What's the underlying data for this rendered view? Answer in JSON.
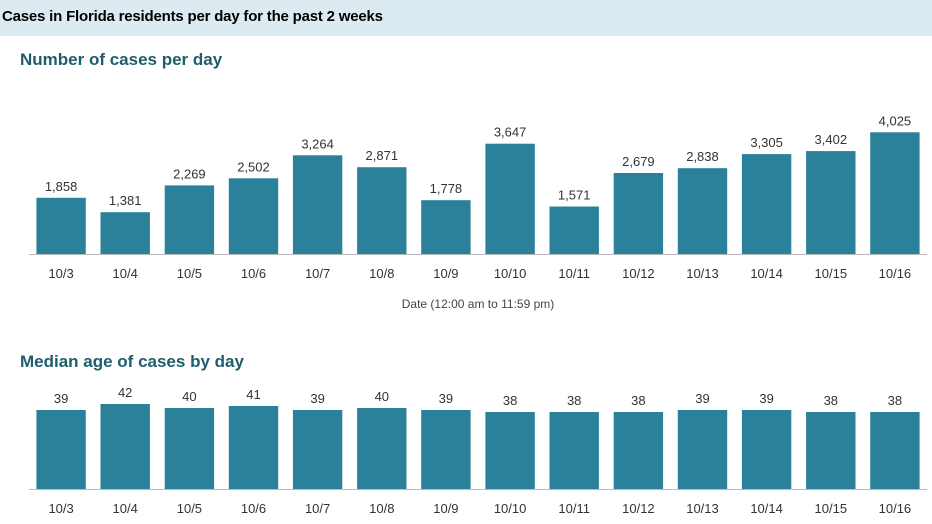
{
  "header": {
    "title": "Cases in Florida residents per day for the past 2 weeks"
  },
  "colors": {
    "bar": "#2b8199",
    "header_band": "#dcebf2",
    "section_title": "#1f5d6c",
    "axis": "#bbbbbb"
  },
  "chart_data": [
    {
      "type": "bar",
      "title": "Number of cases per day",
      "xlabel": "Date (12:00 am to 11:59 pm)",
      "ylabel": "",
      "categories": [
        "10/3",
        "10/4",
        "10/5",
        "10/6",
        "10/7",
        "10/8",
        "10/9",
        "10/10",
        "10/11",
        "10/12",
        "10/13",
        "10/14",
        "10/15",
        "10/16"
      ],
      "values": [
        1858,
        1381,
        2269,
        2502,
        3264,
        2871,
        1778,
        3647,
        1571,
        2679,
        2838,
        3305,
        3402,
        4025
      ],
      "value_labels": [
        "1,858",
        "1,381",
        "2,269",
        "2,502",
        "3,264",
        "2,871",
        "1,778",
        "3,647",
        "1,571",
        "2,679",
        "2,838",
        "3,305",
        "3,402",
        "4,025"
      ],
      "ylim": [
        0,
        4200
      ],
      "grid": false
    },
    {
      "type": "bar",
      "title": "Median age of cases by day",
      "xlabel": "",
      "ylabel": "",
      "categories": [
        "10/3",
        "10/4",
        "10/5",
        "10/6",
        "10/7",
        "10/8",
        "10/9",
        "10/10",
        "10/11",
        "10/12",
        "10/13",
        "10/14",
        "10/15",
        "10/16"
      ],
      "values": [
        39,
        42,
        40,
        41,
        39,
        40,
        39,
        38,
        38,
        38,
        39,
        39,
        38,
        38
      ],
      "value_labels": [
        "39",
        "42",
        "40",
        "41",
        "39",
        "40",
        "39",
        "38",
        "38",
        "38",
        "39",
        "39",
        "38",
        "38"
      ],
      "grid": false
    }
  ]
}
